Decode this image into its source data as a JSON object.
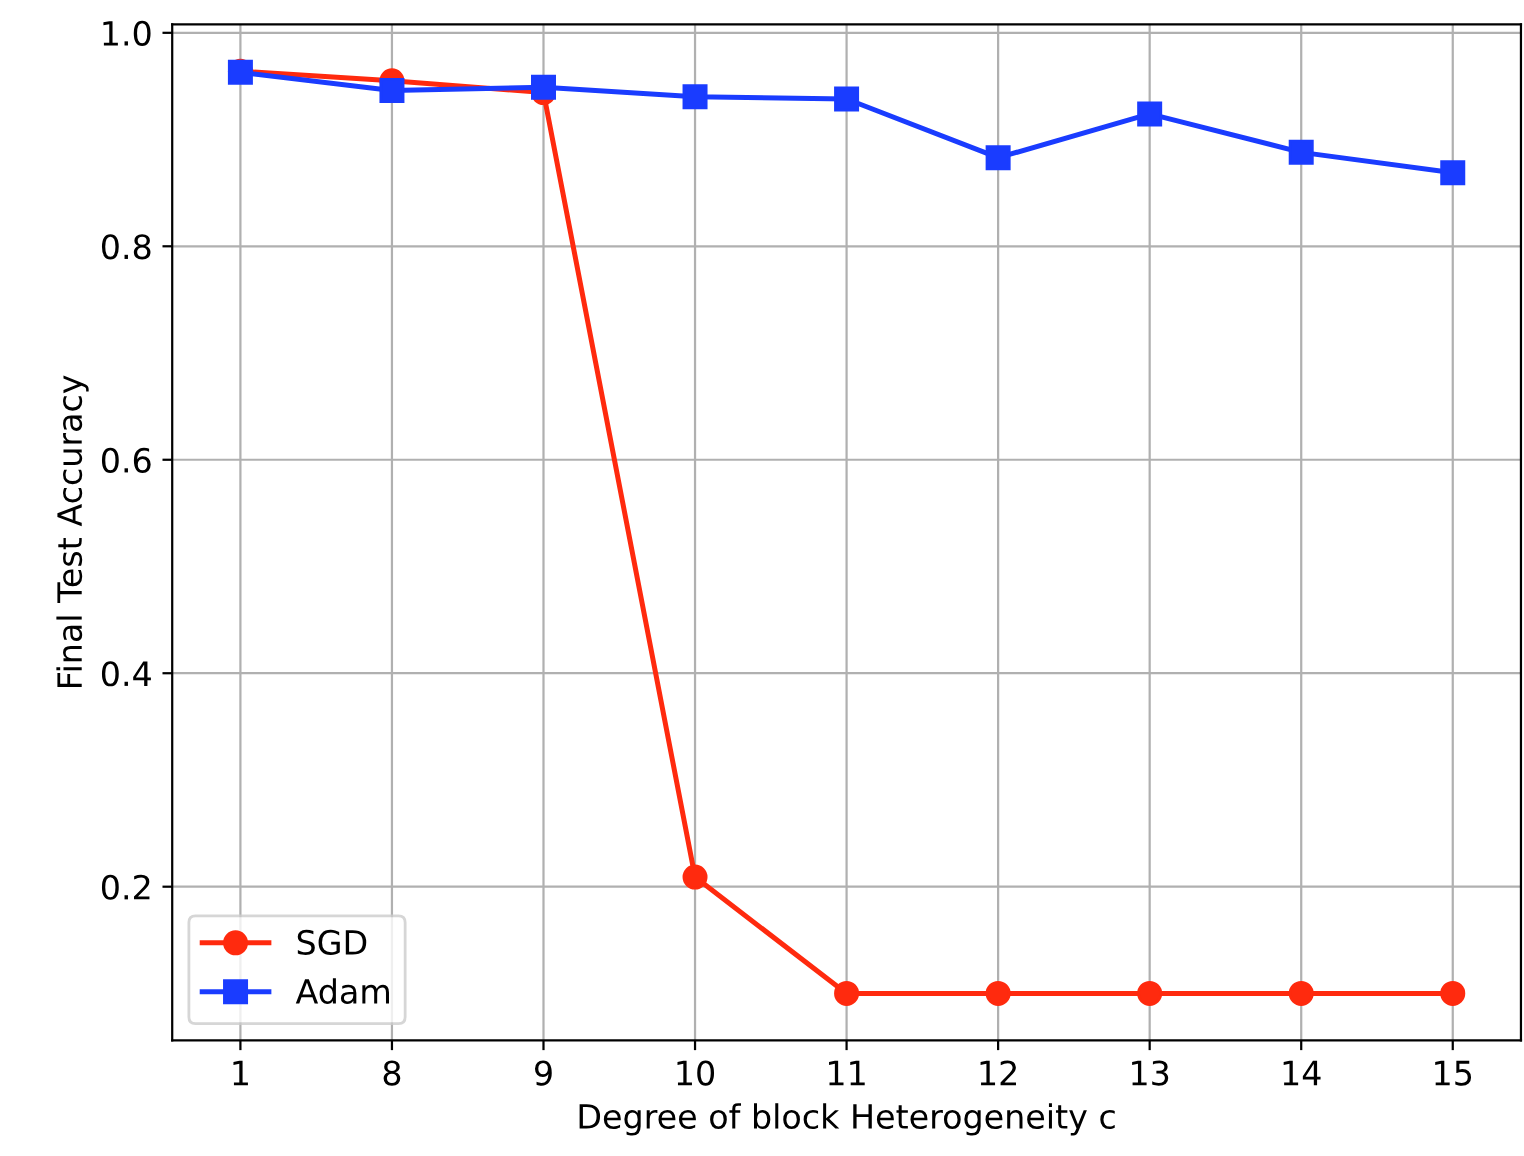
{
  "chart_data": {
    "type": "line",
    "xlabel": "Degree of block Heterogeneity c",
    "ylabel": "Final Test Accuracy",
    "categories": [
      "1",
      "8",
      "9",
      "10",
      "11",
      "12",
      "13",
      "14",
      "15"
    ],
    "series": [
      {
        "name": "SGD",
        "color": "#ff2a0e",
        "marker": "circle",
        "values": [
          0.964,
          0.955,
          0.944,
          0.209,
          0.1,
          0.1,
          0.1,
          0.1,
          0.1
        ]
      },
      {
        "name": "Adam",
        "color": "#1a3cff",
        "marker": "square",
        "values": [
          0.963,
          0.946,
          0.949,
          0.94,
          0.938,
          0.883,
          0.924,
          0.888,
          0.869
        ]
      }
    ],
    "ylim": [
      0.056,
      1.008
    ],
    "yticks": [
      {
        "value": 0.2,
        "label": "0.2"
      },
      {
        "value": 0.4,
        "label": "0.4"
      },
      {
        "value": 0.6,
        "label": "0.6"
      },
      {
        "value": 0.8,
        "label": "0.8"
      },
      {
        "value": 1.0,
        "label": "1.0"
      }
    ],
    "grid": true,
    "legend": "bottom left",
    "line_style": "solid"
  }
}
